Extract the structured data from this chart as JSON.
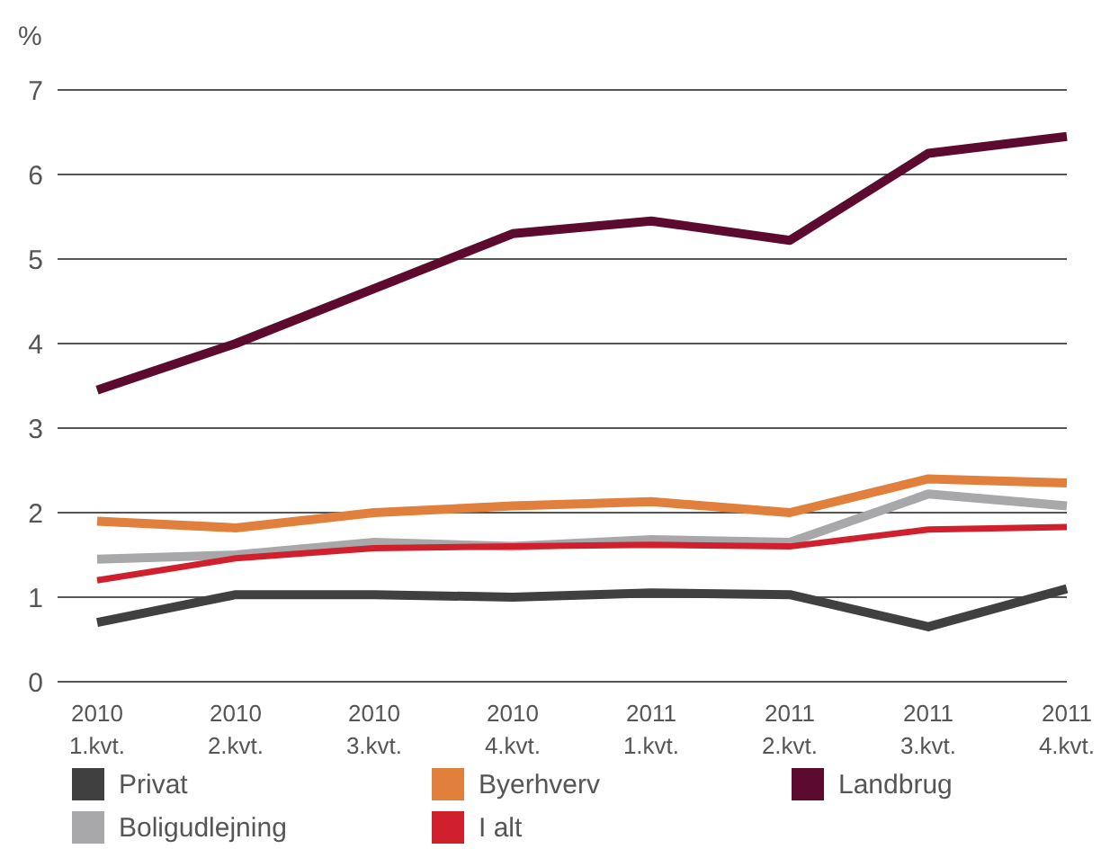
{
  "chart_data": {
    "type": "line",
    "ylabel": "%",
    "categories": [
      "2010\n1.kvt.",
      "2010\n2.kvt.",
      "2010\n3.kvt.",
      "2010\n4.kvt.",
      "2011\n1.kvt.",
      "2011\n2.kvt.",
      "2011\n3.kvt.",
      "2011\n4.kvt."
    ],
    "series": [
      {
        "name": "Privat",
        "color": "#404040",
        "values": [
          0.7,
          1.03,
          1.03,
          1.0,
          1.05,
          1.03,
          0.65,
          1.1
        ]
      },
      {
        "name": "Byerhverv",
        "color": "#e0803c",
        "values": [
          1.9,
          1.82,
          2.0,
          2.08,
          2.13,
          2.0,
          2.4,
          2.35
        ]
      },
      {
        "name": "Landbrug",
        "color": "#5c0a2e",
        "values": [
          3.45,
          4.0,
          4.65,
          5.3,
          5.45,
          5.22,
          6.25,
          6.45
        ]
      },
      {
        "name": "Boligudlejning",
        "color": "#a8a8aa",
        "values": [
          1.45,
          1.5,
          1.65,
          1.6,
          1.68,
          1.65,
          2.22,
          2.08
        ]
      },
      {
        "name": "I alt",
        "color": "#d0202e",
        "values": [
          1.2,
          1.46,
          1.58,
          1.6,
          1.62,
          1.6,
          1.8,
          1.83
        ]
      }
    ],
    "ylim": [
      0,
      7
    ],
    "yticks": [
      0,
      1,
      2,
      3,
      4,
      5,
      6,
      7
    ],
    "grid": "y",
    "legend": "bottom",
    "marker": "none",
    "line_style": "solid"
  }
}
